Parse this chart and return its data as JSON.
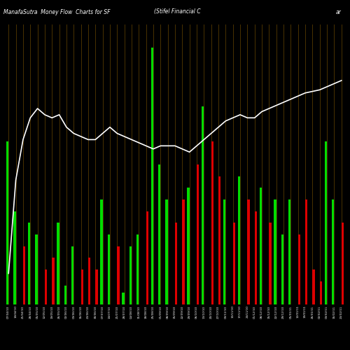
{
  "title_left": "ManafaSutra  Money Flow  Charts for SF",
  "title_right": "(Stifel Financial C",
  "title_far_right": "ar",
  "bg_color": "#000000",
  "line_color": "#ffffff",
  "grid_color": "#4a3200",
  "categories": [
    "07/04/10",
    "14/04/10",
    "21/04/10",
    "28/04/10",
    "05/05/10",
    "12/05/10",
    "19/05/10",
    "26/05/10",
    "02/06/10",
    "09/06/10",
    "16/06/10",
    "23/06/10",
    "30/06/10",
    "07/07/10",
    "14/07/10",
    "21/07/10",
    "28/07/10",
    "04/08/10",
    "11/08/10",
    "18/08/10",
    "25/08/10",
    "01/09/10",
    "08/09/10",
    "15/09/10",
    "22/09/10",
    "29/09/10",
    "06/10/10",
    "13/10/10",
    "20/10/10",
    "27/10/10",
    "03/11/10",
    "10/11/10",
    "17/11/10",
    "24/11/10",
    "01/12/10",
    "08/12/10",
    "15/12/10",
    "22/12/10",
    "29/12/10",
    "05/01/11",
    "12/01/11",
    "19/01/11",
    "26/01/11",
    "02/02/11",
    "09/02/11",
    "16/02/11",
    "23/02/11"
  ],
  "green_bars": [
    7.0,
    4.0,
    0.0,
    3.5,
    3.0,
    0.0,
    0.0,
    3.5,
    0.8,
    2.5,
    0.0,
    0.0,
    0.0,
    4.5,
    3.0,
    0.0,
    0.5,
    2.5,
    3.0,
    0.0,
    11.0,
    6.0,
    4.5,
    0.0,
    0.0,
    5.0,
    0.0,
    8.5,
    0.0,
    0.0,
    4.5,
    0.0,
    5.5,
    0.0,
    0.0,
    5.0,
    0.0,
    4.5,
    3.0,
    4.5,
    0.0,
    0.0,
    0.0,
    0.0,
    7.0,
    4.5,
    0.0
  ],
  "red_bars": [
    0.0,
    0.0,
    2.5,
    0.0,
    0.0,
    1.5,
    2.0,
    0.0,
    0.0,
    0.0,
    1.5,
    2.0,
    1.5,
    0.0,
    0.0,
    2.5,
    0.0,
    0.0,
    0.0,
    4.0,
    0.0,
    0.0,
    0.0,
    3.5,
    4.5,
    0.0,
    6.0,
    0.0,
    7.0,
    5.5,
    0.0,
    3.5,
    0.0,
    4.5,
    4.0,
    0.0,
    3.5,
    0.0,
    0.0,
    0.0,
    3.0,
    4.5,
    1.5,
    1.0,
    0.0,
    0.0,
    3.5
  ],
  "line_values": [
    2.5,
    5.5,
    6.8,
    7.5,
    7.8,
    7.6,
    7.5,
    7.6,
    7.2,
    7.0,
    6.9,
    6.8,
    6.8,
    7.0,
    7.2,
    7.0,
    6.9,
    6.8,
    6.7,
    6.6,
    6.5,
    6.6,
    6.6,
    6.6,
    6.5,
    6.4,
    6.6,
    6.8,
    7.0,
    7.2,
    7.4,
    7.5,
    7.6,
    7.5,
    7.5,
    7.7,
    7.8,
    7.9,
    8.0,
    8.1,
    8.2,
    8.3,
    8.35,
    8.4,
    8.5,
    8.6,
    8.7
  ],
  "ylim_bars": [
    0,
    12
  ],
  "ylim_line": [
    1.5,
    10.5
  ]
}
